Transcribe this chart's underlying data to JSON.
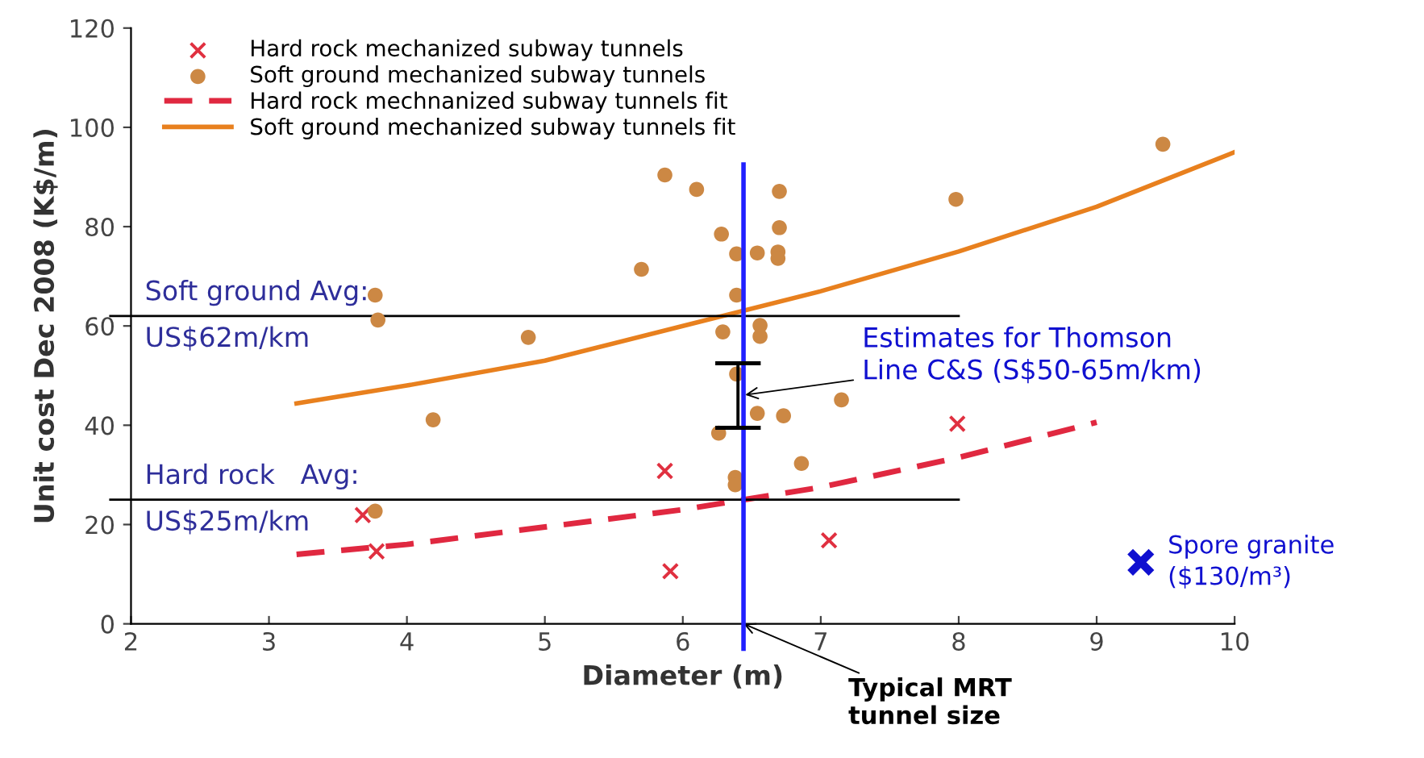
{
  "chart_data": {
    "type": "scatter",
    "xlabel": "Diameter (m)",
    "ylabel": "Unit cost Dec 2008 (K$/m)",
    "xlim": [
      2,
      10
    ],
    "ylim": [
      0,
      120
    ],
    "xticks": [
      2,
      3,
      4,
      5,
      6,
      7,
      8,
      9,
      10
    ],
    "yticks": [
      0,
      20,
      40,
      60,
      80,
      100,
      120
    ],
    "grid": false,
    "legend": "top left",
    "series": [
      {
        "name": "Hard rock mechanized subway tunnels",
        "marker": "cross",
        "color": "#e03040",
        "x": [
          5.87,
          3.68,
          3.78,
          5.91,
          7.99,
          7.06
        ],
        "values": [
          30.8,
          21.9,
          14.6,
          10.6,
          40.3,
          16.8
        ]
      },
      {
        "name": "Soft ground mechanized subway tunnels",
        "marker": "circle",
        "color": "#cc8844",
        "x": [
          5.87,
          6.1,
          6.28,
          6.39,
          6.54,
          5.7,
          6.39,
          3.77,
          3.79,
          4.88,
          6.29,
          6.56,
          6.56,
          6.39,
          4.19,
          6.54,
          6.26,
          6.38,
          6.38,
          3.77,
          9.48,
          6.7,
          6.7,
          6.69,
          6.69,
          7.98,
          7.15,
          6.73,
          6.86
        ],
        "values": [
          90.4,
          87.5,
          78.5,
          74.5,
          74.7,
          71.4,
          66.2,
          66.2,
          61.2,
          57.7,
          58.8,
          60.1,
          57.9,
          50.3,
          41.1,
          42.4,
          38.4,
          29.5,
          28.0,
          22.7,
          96.6,
          87.1,
          79.8,
          74.9,
          73.6,
          85.5,
          45.1,
          41.9,
          32.3
        ]
      },
      {
        "name": "Hard rock mechnanized subway tunnels fit",
        "type": "line",
        "line_style": "dashed",
        "marker": "none",
        "color": "#e02840",
        "x": [
          3.2,
          4,
          5,
          6,
          7,
          8,
          9
        ],
        "values": [
          14,
          16,
          19.5,
          23,
          27.5,
          33.5,
          40.6
        ]
      },
      {
        "name": "Soft ground mechanized subway tunnels fit",
        "type": "line",
        "line_style": "solid",
        "marker": "none",
        "color": "#e8801e",
        "x": [
          3.2,
          4,
          5,
          6,
          7,
          8,
          9,
          10
        ],
        "values": [
          44.4,
          48,
          53,
          60,
          67,
          75,
          84,
          95
        ]
      },
      {
        "name": "Spore granite\n($130/m³)",
        "marker": "cross",
        "color": "#1010d0",
        "x": [
          9.32
        ],
        "values": [
          12.4
        ]
      },
      {
        "type": "line",
        "line_style": "solid",
        "marker": "none",
        "color": "#000000",
        "x": [
          6.4,
          6.4
        ],
        "values": [
          39.5,
          52.5
        ]
      }
    ],
    "ref_lines": [
      {
        "axis": "y",
        "value": 62,
        "label": "Soft ground Avg:\nUS$62m/km",
        "color": "#000000"
      },
      {
        "axis": "y",
        "value": 25,
        "label": "Hard rock   Avg:\nUS$25m/km",
        "color": "#000000"
      },
      {
        "axis": "x",
        "value": 6.44,
        "label": "Typical MRT\ntunnel size",
        "color": "#2020ff"
      }
    ],
    "annotations": [
      {
        "text": "Estimates for Thomson\nLine C&S (S$50-65m/km)",
        "x": 6.42,
        "y": 46
      }
    ]
  }
}
